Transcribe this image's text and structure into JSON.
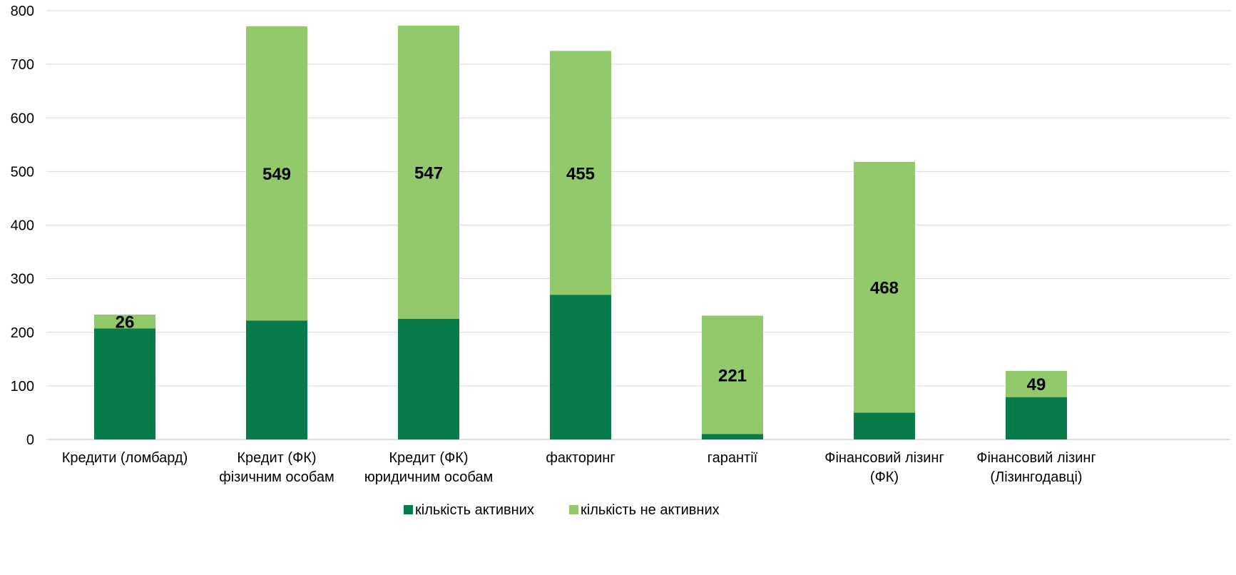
{
  "chart_data": {
    "type": "bar",
    "stacked": true,
    "categories": [
      [
        "Кредити (ломбард)"
      ],
      [
        "Кредит (ФК)",
        "фізичним особам"
      ],
      [
        "Кредит (ФК)",
        "юридичним особам"
      ],
      [
        "факторинг"
      ],
      [
        "гарантії"
      ],
      [
        "Фінансовий лізинг",
        "(ФК)"
      ],
      [
        "Фінансовий лізинг",
        "(Лізингодавці)"
      ]
    ],
    "series": [
      {
        "name": "кількість активних",
        "color": "#077b4a",
        "values": [
          207,
          222,
          225,
          270,
          10,
          50,
          79
        ]
      },
      {
        "name": "кількість не активних",
        "color": "#92c96a",
        "values": [
          26,
          549,
          547,
          455,
          221,
          468,
          49
        ]
      }
    ],
    "data_labels": [
      "26",
      "549",
      "547",
      "455",
      "221",
      "468",
      "49"
    ],
    "ylim": [
      0,
      800
    ],
    "yticks": [
      0,
      100,
      200,
      300,
      400,
      500,
      600,
      700,
      800
    ],
    "grid": true,
    "legend": "bottom"
  }
}
